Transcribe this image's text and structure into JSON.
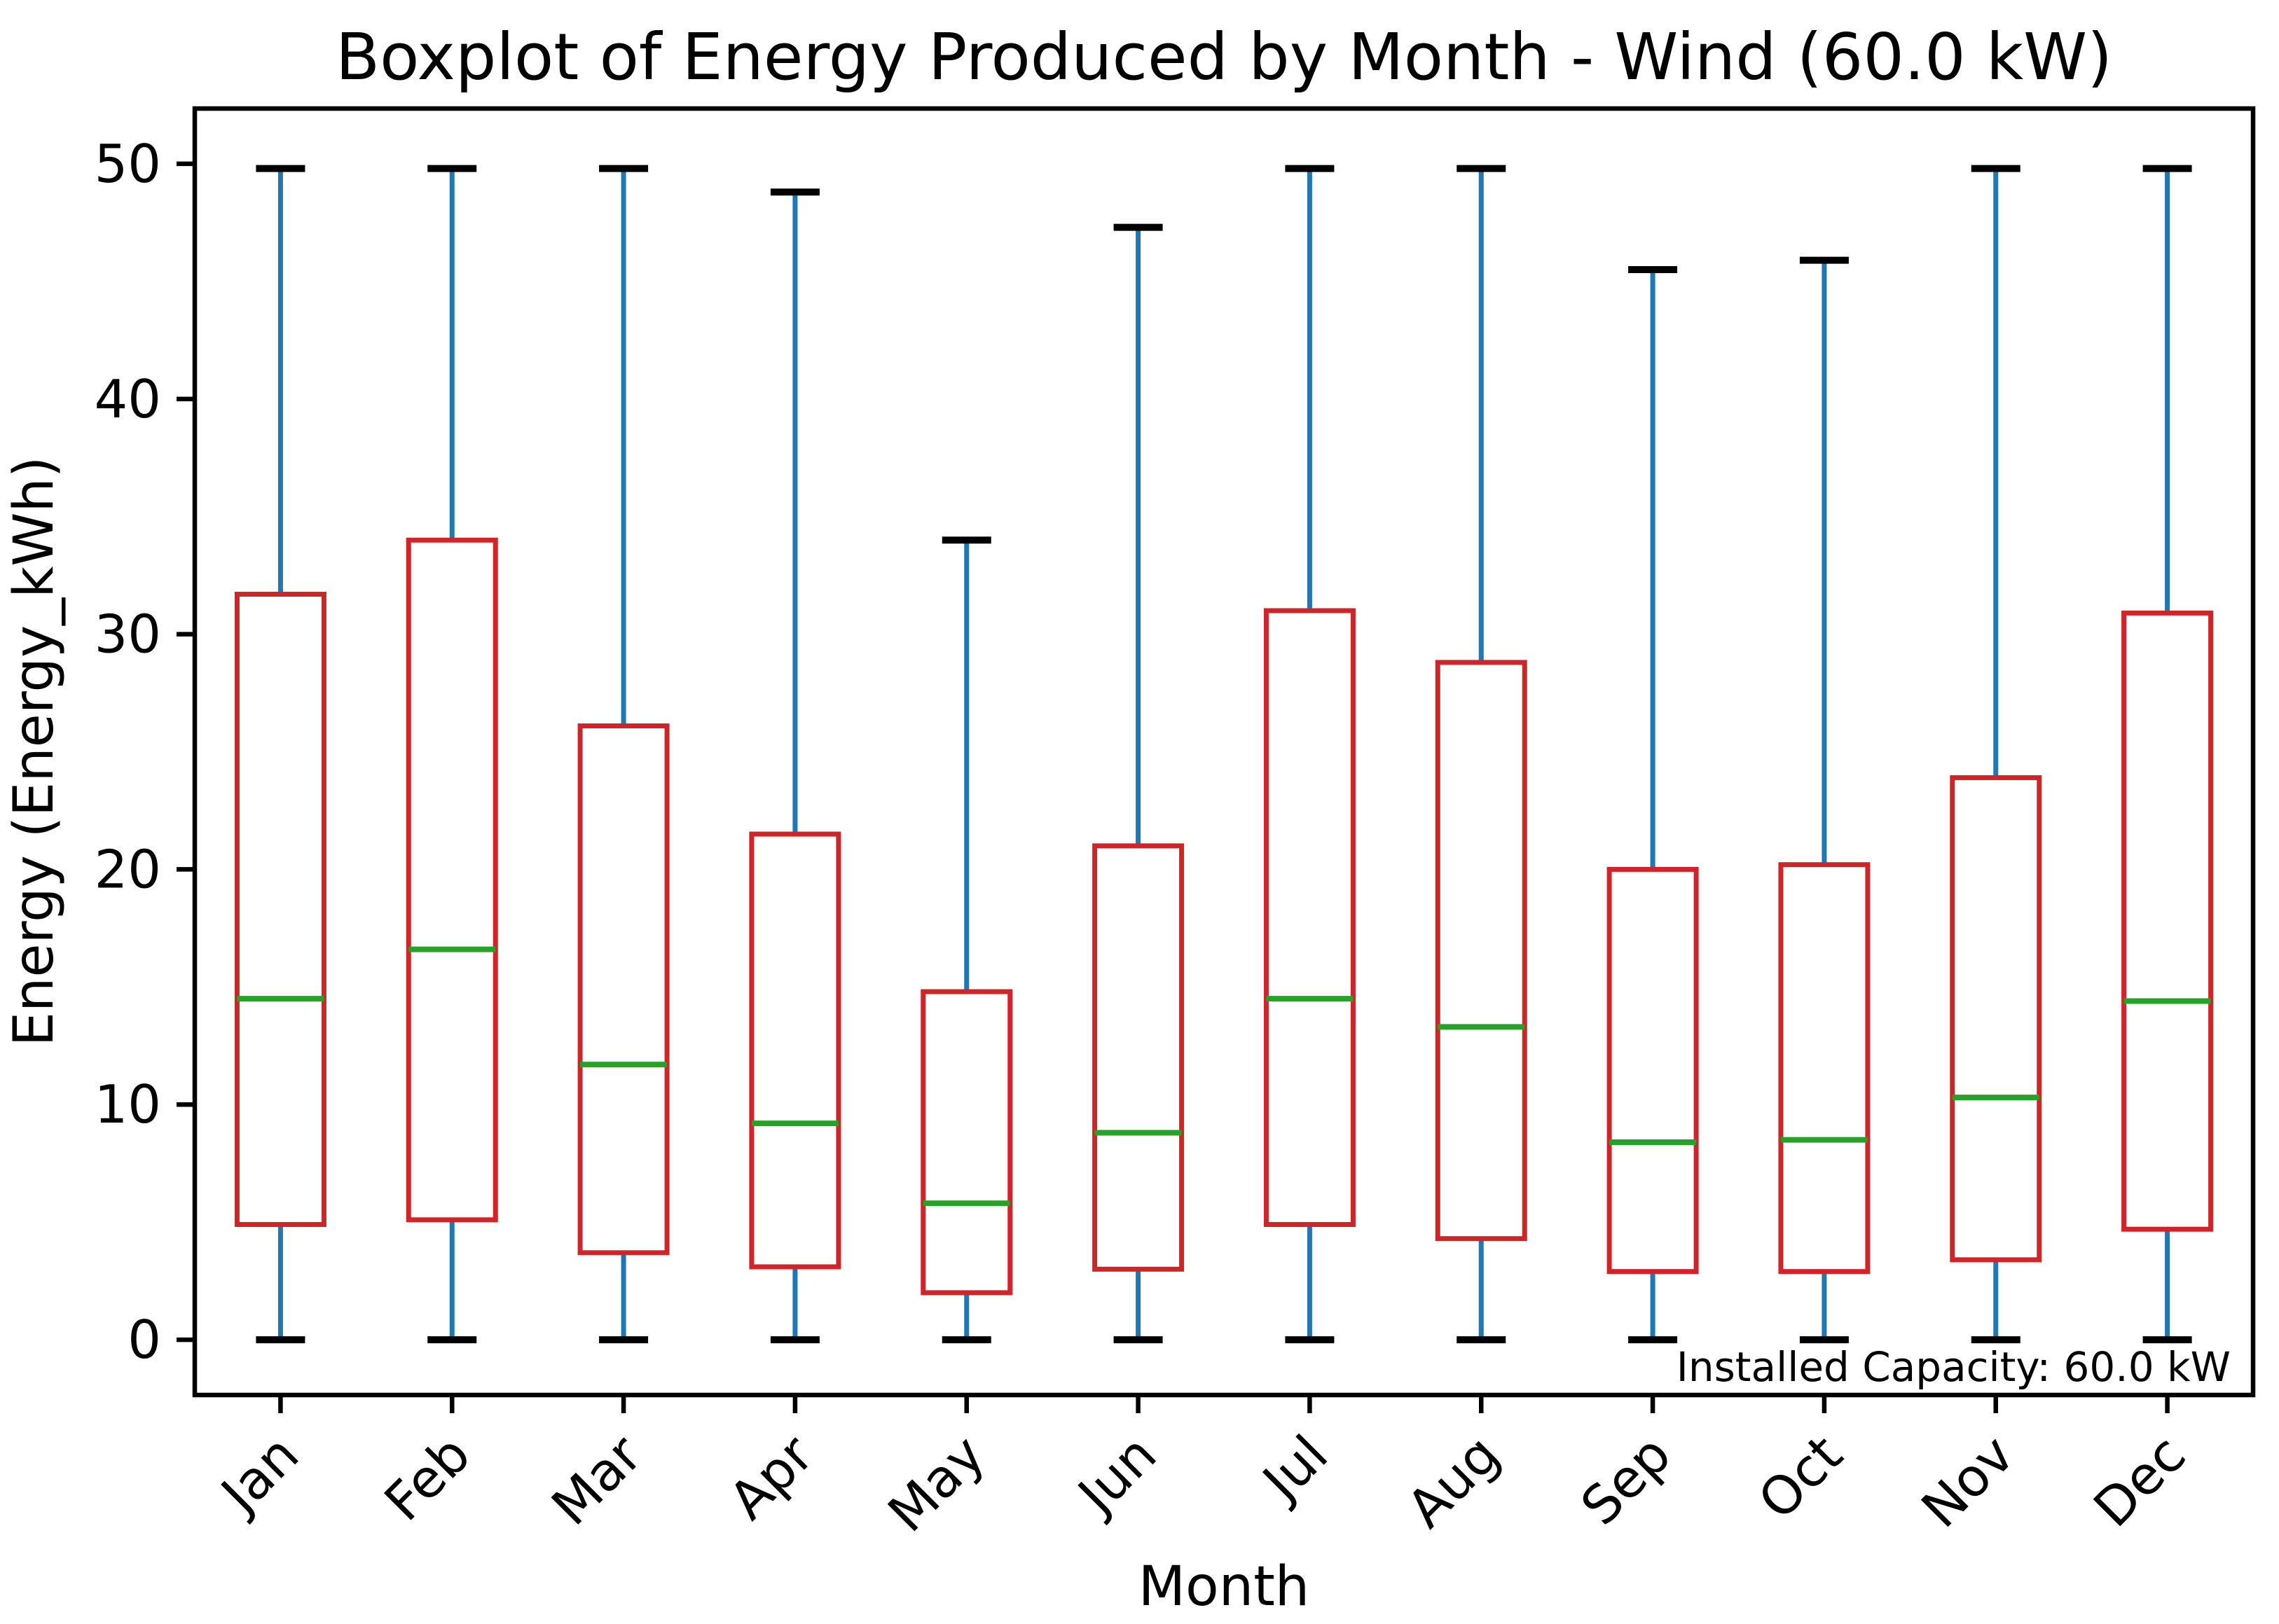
{
  "chart_data": {
    "type": "boxplot",
    "title": "Boxplot of Energy Produced by Month - Wind (60.0 kW)",
    "xlabel": "Month",
    "ylabel": "Energy (Energy_kWh)",
    "annotation": "Installed Capacity: 60.0 kW",
    "categories": [
      "Jan",
      "Feb",
      "Mar",
      "Apr",
      "May",
      "Jun",
      "Jul",
      "Aug",
      "Sep",
      "Oct",
      "Nov",
      "Dec"
    ],
    "yticks": [
      0,
      10,
      20,
      30,
      40,
      50
    ],
    "ylim": [
      -2.35,
      52.35
    ],
    "grid": false,
    "legend": null,
    "x_tick_rotation_deg": 45,
    "series": [
      {
        "month": "Jan",
        "whislo": 0,
        "q1": 4.9,
        "med": 14.5,
        "q3": 31.7,
        "whishi": 49.8
      },
      {
        "month": "Feb",
        "whislo": 0,
        "q1": 5.1,
        "med": 16.6,
        "q3": 34.0,
        "whishi": 49.8
      },
      {
        "month": "Mar",
        "whislo": 0,
        "q1": 3.7,
        "med": 11.7,
        "q3": 26.1,
        "whishi": 49.8
      },
      {
        "month": "Apr",
        "whislo": 0,
        "q1": 3.1,
        "med": 9.2,
        "q3": 21.5,
        "whishi": 48.8
      },
      {
        "month": "May",
        "whislo": 0,
        "q1": 2.0,
        "med": 5.8,
        "q3": 14.8,
        "whishi": 34.0
      },
      {
        "month": "Jun",
        "whislo": 0,
        "q1": 3.0,
        "med": 8.8,
        "q3": 21.0,
        "whishi": 47.3
      },
      {
        "month": "Jul",
        "whislo": 0,
        "q1": 4.9,
        "med": 14.5,
        "q3": 31.0,
        "whishi": 49.8
      },
      {
        "month": "Aug",
        "whislo": 0,
        "q1": 4.3,
        "med": 13.3,
        "q3": 28.8,
        "whishi": 49.8
      },
      {
        "month": "Sep",
        "whislo": 0,
        "q1": 2.9,
        "med": 8.4,
        "q3": 20.0,
        "whishi": 45.5
      },
      {
        "month": "Oct",
        "whislo": 0,
        "q1": 2.9,
        "med": 8.5,
        "q3": 20.2,
        "whishi": 45.9
      },
      {
        "month": "Nov",
        "whislo": 0,
        "q1": 3.4,
        "med": 10.3,
        "q3": 23.9,
        "whishi": 49.8
      },
      {
        "month": "Dec",
        "whislo": 0,
        "q1": 4.7,
        "med": 14.4,
        "q3": 30.9,
        "whishi": 49.8
      }
    ],
    "colors": {
      "box": "#cf2528",
      "whisker": "#1f77b4",
      "median": "#27a127",
      "cap": "#000000",
      "spine": "#000000"
    }
  }
}
